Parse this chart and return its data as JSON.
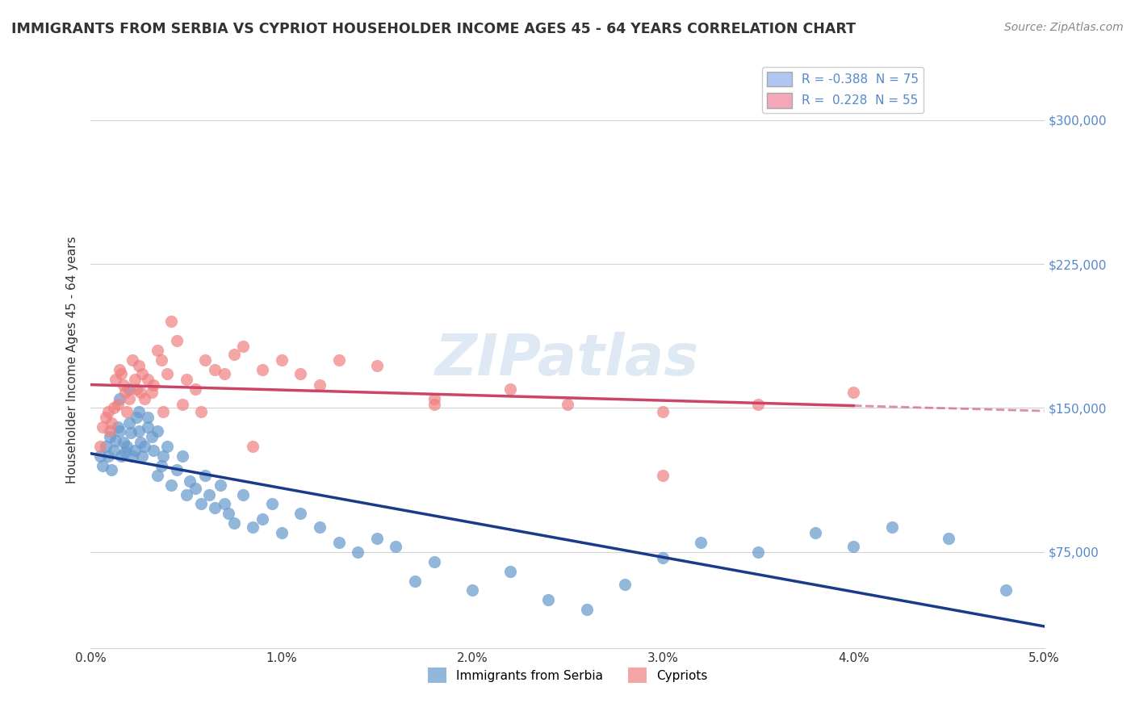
{
  "title": "IMMIGRANTS FROM SERBIA VS CYPRIOT HOUSEHOLDER INCOME AGES 45 - 64 YEARS CORRELATION CHART",
  "source": "Source: ZipAtlas.com",
  "ylabel": "Householder Income Ages 45 - 64 years",
  "xlim": [
    0.0,
    5.0
  ],
  "ylim": [
    25000,
    325000
  ],
  "yticks": [
    75000,
    150000,
    225000,
    300000
  ],
  "ytick_labels": [
    "$75,000",
    "$150,000",
    "$225,000",
    "$300,000"
  ],
  "legend_entries": [
    {
      "label": "R = -0.388  N = 75",
      "color": "#aec6f0"
    },
    {
      "label": "R =  0.228  N = 55",
      "color": "#f4a7b9"
    }
  ],
  "serbia_color": "#6699cc",
  "cyprus_color": "#f08080",
  "serbia_line_color": "#1a3a8a",
  "cyprus_line_color": "#cc4466",
  "watermark": "ZIPatlas",
  "serbia_scatter_x": [
    0.05,
    0.08,
    0.1,
    0.12,
    0.13,
    0.14,
    0.15,
    0.16,
    0.17,
    0.18,
    0.19,
    0.2,
    0.21,
    0.22,
    0.23,
    0.24,
    0.25,
    0.26,
    0.27,
    0.28,
    0.3,
    0.32,
    0.33,
    0.35,
    0.37,
    0.38,
    0.4,
    0.42,
    0.45,
    0.48,
    0.5,
    0.52,
    0.55,
    0.58,
    0.6,
    0.62,
    0.65,
    0.68,
    0.7,
    0.72,
    0.75,
    0.8,
    0.85,
    0.9,
    0.95,
    1.0,
    1.1,
    1.2,
    1.3,
    1.4,
    1.5,
    1.6,
    1.7,
    1.8,
    2.0,
    2.2,
    2.4,
    2.6,
    2.8,
    3.0,
    3.2,
    3.5,
    3.8,
    4.0,
    4.2,
    4.5,
    4.8,
    0.06,
    0.09,
    0.11,
    0.15,
    0.2,
    0.25,
    0.3,
    0.35
  ],
  "serbia_scatter_y": [
    125000,
    130000,
    135000,
    128000,
    133000,
    140000,
    138000,
    125000,
    132000,
    127000,
    130000,
    142000,
    137000,
    125000,
    128000,
    145000,
    138000,
    132000,
    125000,
    130000,
    140000,
    135000,
    128000,
    115000,
    120000,
    125000,
    130000,
    110000,
    118000,
    125000,
    105000,
    112000,
    108000,
    100000,
    115000,
    105000,
    98000,
    110000,
    100000,
    95000,
    90000,
    105000,
    88000,
    92000,
    100000,
    85000,
    95000,
    88000,
    80000,
    75000,
    82000,
    78000,
    60000,
    70000,
    55000,
    65000,
    50000,
    45000,
    58000,
    72000,
    80000,
    75000,
    85000,
    78000,
    88000,
    82000,
    55000,
    120000,
    125000,
    118000,
    155000,
    160000,
    148000,
    145000,
    138000
  ],
  "cyprus_scatter_x": [
    0.05,
    0.08,
    0.1,
    0.12,
    0.13,
    0.15,
    0.16,
    0.17,
    0.18,
    0.2,
    0.22,
    0.23,
    0.24,
    0.25,
    0.27,
    0.28,
    0.3,
    0.32,
    0.33,
    0.35,
    0.37,
    0.4,
    0.42,
    0.45,
    0.5,
    0.55,
    0.6,
    0.65,
    0.7,
    0.75,
    0.8,
    0.9,
    1.0,
    1.1,
    1.2,
    1.3,
    1.5,
    1.8,
    2.2,
    2.5,
    3.0,
    3.5,
    4.0,
    0.06,
    0.09,
    0.11,
    0.14,
    0.19,
    0.26,
    0.38,
    0.48,
    0.58,
    0.85,
    1.8,
    3.0
  ],
  "cyprus_scatter_y": [
    130000,
    145000,
    138000,
    150000,
    165000,
    170000,
    168000,
    162000,
    158000,
    155000,
    175000,
    165000,
    160000,
    172000,
    168000,
    155000,
    165000,
    158000,
    162000,
    180000,
    175000,
    168000,
    195000,
    185000,
    165000,
    160000,
    175000,
    170000,
    168000,
    178000,
    182000,
    170000,
    175000,
    168000,
    162000,
    175000,
    172000,
    155000,
    160000,
    152000,
    148000,
    152000,
    158000,
    140000,
    148000,
    142000,
    152000,
    148000,
    158000,
    148000,
    152000,
    148000,
    130000,
    152000,
    115000
  ],
  "bottom_legend": [
    {
      "label": "Immigrants from Serbia",
      "color": "#6699cc"
    },
    {
      "label": "Cypriots",
      "color": "#f08080"
    }
  ]
}
